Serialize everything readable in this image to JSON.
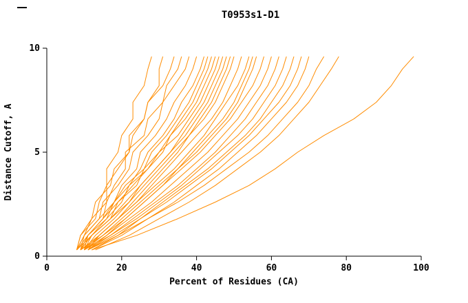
{
  "chart_data": {
    "type": "line",
    "title": "T0953s1-D1",
    "xlabel": "Percent of Residues (CA)",
    "ylabel": "Distance Cutoff, A",
    "xlim": [
      0,
      100
    ],
    "ylim": [
      0,
      10
    ],
    "xticks": [
      0,
      20,
      40,
      60,
      80,
      100
    ],
    "yticks": [
      0,
      5,
      10
    ],
    "grid": false,
    "legend": "none",
    "line_color": "#ff8c00",
    "axis_color": "#000000",
    "y": [
      0.3,
      1.0,
      1.8,
      2.6,
      3.4,
      4.2,
      5.0,
      5.8,
      6.6,
      7.4,
      8.2,
      9.0,
      9.6
    ],
    "series": [
      [
        8,
        9,
        13,
        14,
        16,
        16,
        19,
        20,
        23,
        23,
        26,
        27,
        28
      ],
      [
        9,
        10,
        12,
        16,
        16,
        19,
        22,
        22,
        26,
        27,
        30,
        30,
        31
      ],
      [
        8,
        9,
        12,
        13,
        17,
        18,
        22,
        23,
        26,
        27,
        31,
        33,
        34
      ],
      [
        9,
        11,
        15,
        16,
        18,
        21,
        21,
        26,
        27,
        31,
        32,
        35,
        36
      ],
      [
        8,
        10,
        14,
        15,
        19,
        22,
        23,
        27,
        30,
        31,
        34,
        37,
        38
      ],
      [
        10,
        11,
        15,
        18,
        20,
        24,
        25,
        29,
        32,
        34,
        37,
        39,
        40
      ],
      [
        9,
        11,
        16,
        18,
        22,
        25,
        27,
        31,
        34,
        36,
        39,
        41,
        42
      ],
      [
        8,
        10,
        14,
        18,
        21,
        26,
        28,
        32,
        35,
        38,
        40,
        42,
        43
      ],
      [
        10,
        12,
        17,
        19,
        24,
        26,
        30,
        33,
        36,
        39,
        41,
        43,
        44
      ],
      [
        9,
        12,
        16,
        20,
        22,
        27,
        31,
        33,
        37,
        40,
        42,
        44,
        45
      ],
      [
        8,
        11,
        15,
        19,
        23,
        27,
        30,
        35,
        38,
        41,
        43,
        45,
        46
      ],
      [
        10,
        13,
        18,
        22,
        25,
        29,
        33,
        36,
        39,
        42,
        44,
        46,
        47
      ],
      [
        9,
        12,
        17,
        21,
        25,
        29,
        33,
        37,
        40,
        43,
        45,
        47,
        48
      ],
      [
        11,
        14,
        19,
        23,
        27,
        31,
        35,
        38,
        41,
        44,
        46,
        48,
        49
      ],
      [
        8,
        12,
        17,
        22,
        26,
        30,
        34,
        38,
        42,
        45,
        47,
        49,
        50
      ],
      [
        10,
        14,
        19,
        24,
        28,
        32,
        36,
        40,
        44,
        47,
        49,
        51,
        52
      ],
      [
        9,
        14,
        19,
        24,
        29,
        34,
        38,
        42,
        45,
        48,
        51,
        53,
        54
      ],
      [
        11,
        16,
        21,
        26,
        31,
        35,
        39,
        43,
        47,
        50,
        52,
        54,
        55
      ],
      [
        10,
        15,
        20,
        25,
        30,
        35,
        40,
        44,
        48,
        51,
        53,
        55,
        56
      ],
      [
        9,
        15,
        21,
        26,
        31,
        36,
        41,
        45,
        49,
        52,
        55,
        57,
        58
      ],
      [
        10,
        16,
        22,
        28,
        33,
        38,
        43,
        47,
        51,
        54,
        57,
        59,
        60
      ],
      [
        11,
        17,
        23,
        29,
        35,
        40,
        45,
        49,
        53,
        56,
        59,
        61,
        62
      ],
      [
        10,
        17,
        24,
        30,
        36,
        41,
        46,
        51,
        55,
        58,
        61,
        63,
        64
      ],
      [
        12,
        19,
        25,
        31,
        37,
        43,
        48,
        53,
        57,
        60,
        63,
        65,
        66
      ],
      [
        11,
        18,
        25,
        32,
        38,
        44,
        49,
        54,
        58,
        62,
        65,
        67,
        68
      ],
      [
        12,
        20,
        27,
        34,
        40,
        46,
        51,
        56,
        60,
        64,
        67,
        69,
        70
      ],
      [
        11,
        19,
        27,
        35,
        42,
        48,
        54,
        59,
        63,
        67,
        70,
        72,
        74
      ],
      [
        13,
        22,
        30,
        38,
        45,
        51,
        57,
        62,
        66,
        70,
        73,
        76,
        78
      ],
      [
        12,
        24,
        35,
        45,
        54,
        61,
        67,
        74,
        82,
        88,
        92,
        95,
        98
      ]
    ]
  }
}
